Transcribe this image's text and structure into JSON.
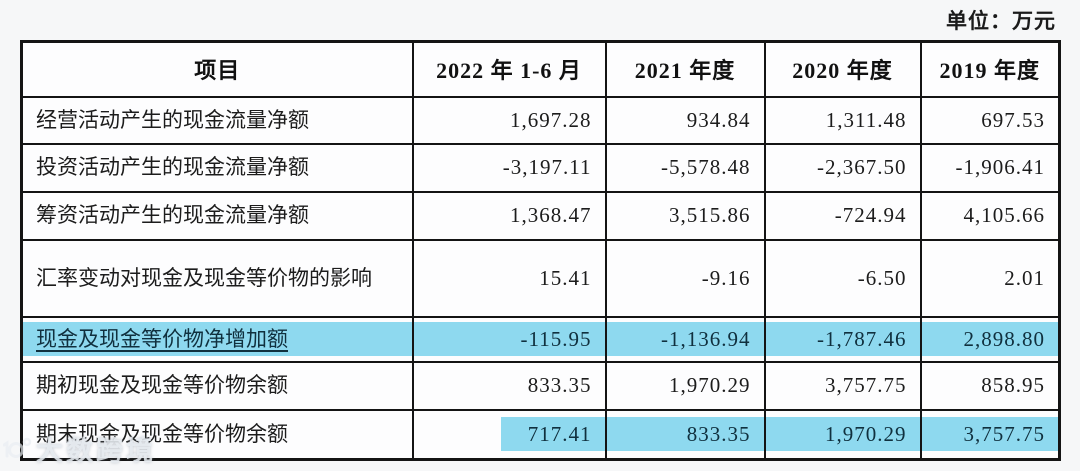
{
  "unit_label": "单位：万元",
  "colors": {
    "highlight_blue": "#8ed9ef",
    "border_black": "#141414",
    "page_bg": "#f6f7f8",
    "cell_bg": "#fdfdfe"
  },
  "watermark": {
    "text": "大数跨境"
  },
  "table": {
    "headers": [
      "项目",
      "2022 年 1-6 月",
      "2021 年度",
      "2020 年度",
      "2019 年度"
    ],
    "rows": [
      {
        "label": "经营活动产生的现金流量净额",
        "values": [
          "1,697.28",
          "934.84",
          "1,311.48",
          "697.53"
        ],
        "highlight": "none"
      },
      {
        "label": "投资活动产生的现金流量净额",
        "values": [
          "-3,197.11",
          "-5,578.48",
          "-2,367.50",
          "-1,906.41"
        ],
        "highlight": "none"
      },
      {
        "label": "筹资活动产生的现金流量净额",
        "values": [
          "1,368.47",
          "3,515.86",
          "-724.94",
          "4,105.66"
        ],
        "highlight": "none"
      },
      {
        "label": "汇率变动对现金及现金等价物的影响",
        "values": [
          "15.41",
          "-9.16",
          "-6.50",
          "2.01"
        ],
        "highlight": "none"
      },
      {
        "label": "现金及现金等价物净增加额",
        "values": [
          "-115.95",
          "-1,136.94",
          "-1,787.46",
          "2,898.80"
        ],
        "highlight": "row"
      },
      {
        "label": "期初现金及现金等价物余额",
        "values": [
          "833.35",
          "1,970.29",
          "3,757.75",
          "858.95"
        ],
        "highlight": "none"
      },
      {
        "label": "期末现金及现金等价物余额",
        "values": [
          "717.41",
          "833.35",
          "1,970.29",
          "3,757.75"
        ],
        "highlight": "values"
      }
    ]
  }
}
